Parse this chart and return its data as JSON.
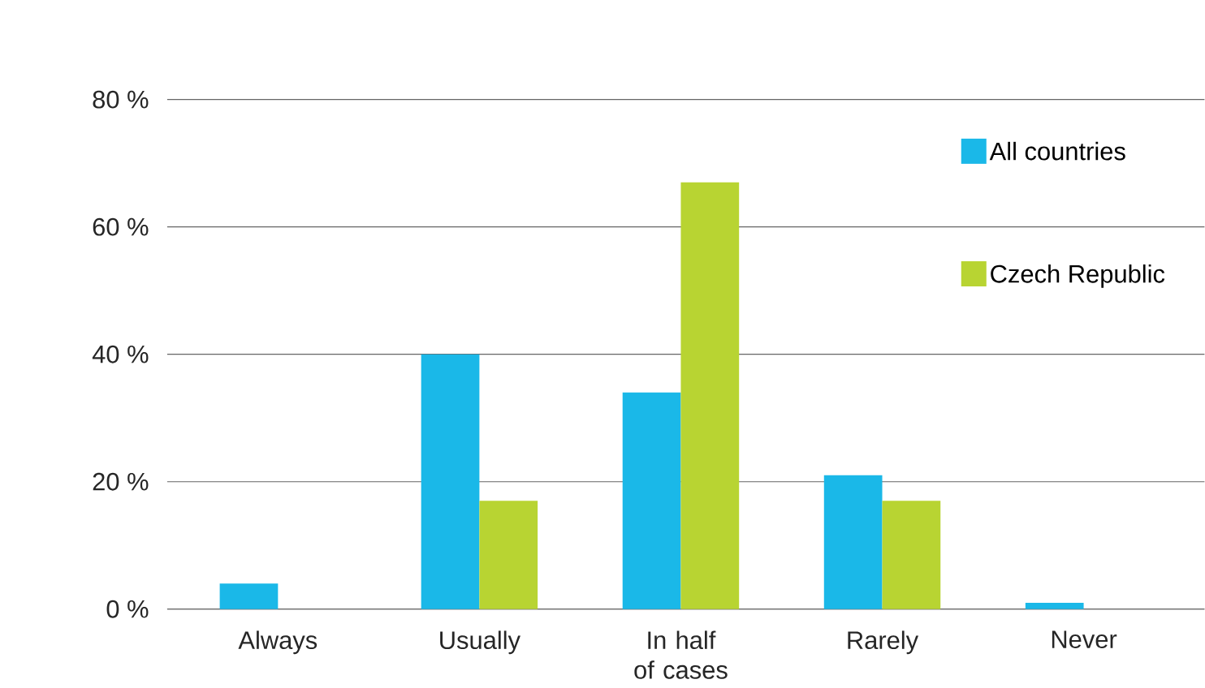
{
  "chart_data": {
    "type": "bar",
    "categories": [
      "Always",
      "Usually",
      "In half of cases",
      "Rarely",
      "Never"
    ],
    "series": [
      {
        "name": "All countries",
        "color": "#1ab8e8",
        "values": [
          4,
          40,
          34,
          21,
          1
        ]
      },
      {
        "name": "Czech Republic",
        "color": "#b8d432",
        "values": [
          0,
          17,
          67,
          17,
          0
        ]
      }
    ],
    "ylim": [
      0,
      80
    ],
    "yticks": [
      {
        "value": 0,
        "label": "0 %"
      },
      {
        "value": 20,
        "label": "20 %"
      },
      {
        "value": 40,
        "label": "40 %"
      },
      {
        "value": 60,
        "label": "60 %"
      },
      {
        "value": 80,
        "label": "80 %"
      }
    ],
    "grid": "y",
    "legend": "top right"
  }
}
